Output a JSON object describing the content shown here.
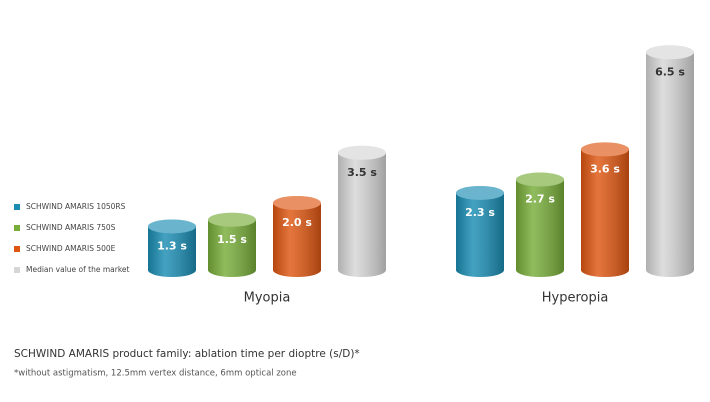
{
  "chart_data": {
    "type": "bar",
    "title": "SCHWIND AMARIS product family: ablation time per dioptre (s/D)*",
    "footnote": "*without astigmatism, 12.5mm vertex distance, 6mm optical zone",
    "categories": [
      "Myopia",
      "Hyperopia"
    ],
    "series": [
      {
        "name": "SCHWIND AMARIS 1050RS",
        "color": "#1b8db3",
        "values": [
          1.3,
          2.3
        ],
        "value_labels": [
          "1.3 s",
          "2.3 s"
        ]
      },
      {
        "name": "SCHWIND AMARIS 750S",
        "color": "#78ad3a",
        "values": [
          1.5,
          2.7
        ],
        "value_labels": [
          "1.5 s",
          "2.7 s"
        ]
      },
      {
        "name": "SCHWIND AMARIS 500E",
        "color": "#de5712",
        "values": [
          2.0,
          3.6
        ],
        "value_labels": [
          "2.0 s",
          "3.6 s"
        ]
      },
      {
        "name": "Median value of the market",
        "color": "#d6d6d6",
        "values": [
          3.5,
          6.5
        ],
        "value_labels": [
          "3.5 s",
          "6.5 s"
        ]
      }
    ],
    "legend": "left"
  }
}
